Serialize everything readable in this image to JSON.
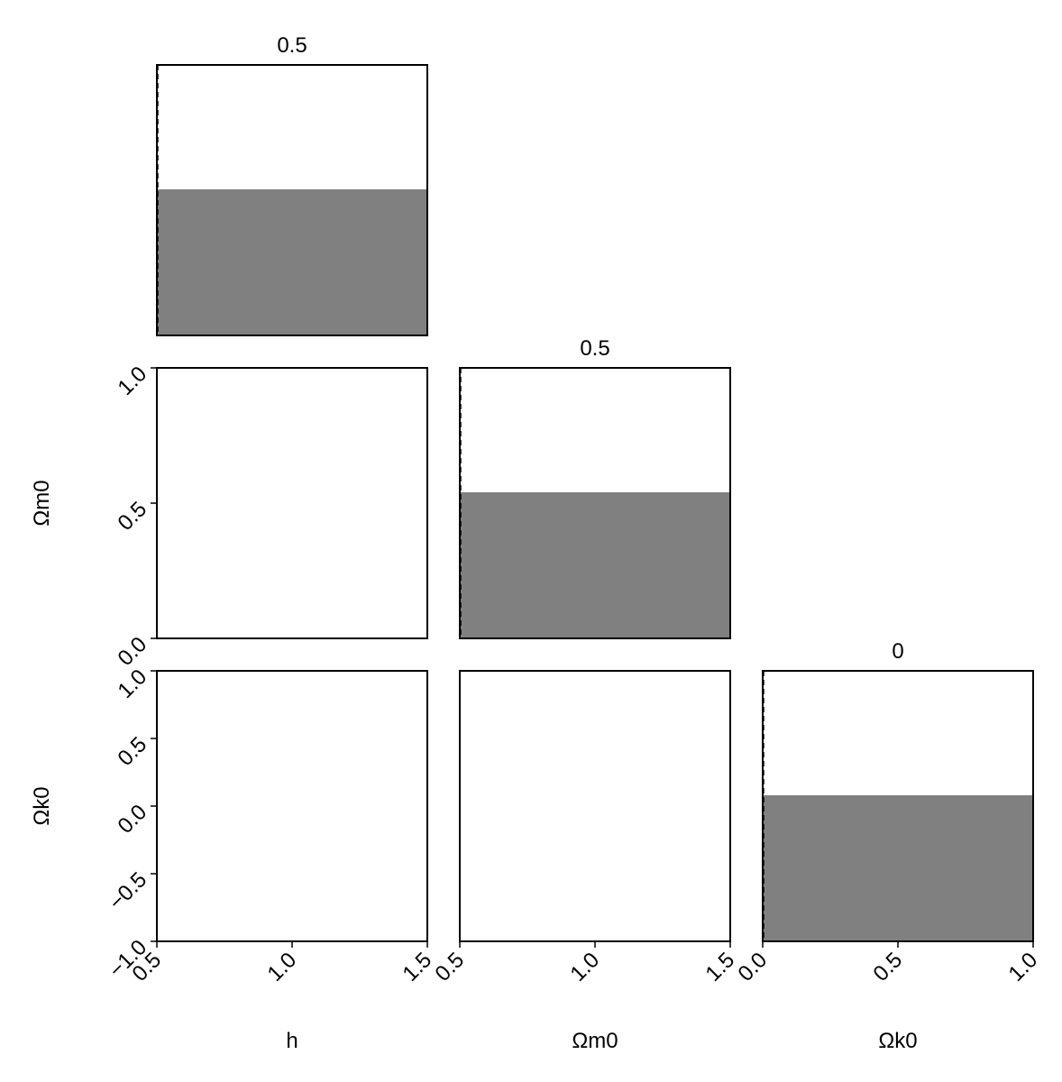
{
  "chart_data": {
    "type": "corner",
    "parameters": [
      "h",
      "Ωm0",
      "Ωk0"
    ],
    "xlabels": [
      "h",
      "Ωm0",
      "Ωk0"
    ],
    "ylabels": [
      "",
      "Ωm0",
      "Ωk0"
    ],
    "ranges": [
      [
        0.5,
        1.5
      ],
      [
        0.0,
        1.0
      ],
      [
        -1.0,
        1.0
      ]
    ],
    "xticks": [
      [
        "0.5",
        "1.0",
        "1.5"
      ],
      [
        "0.5",
        "1.0",
        "1.5"
      ],
      [
        "0.0",
        "0.5",
        "1.0"
      ]
    ],
    "yticks": [
      [],
      [
        "0.0",
        "0.5",
        "1.0"
      ],
      [
        "−1.0",
        "−0.5",
        "0.0",
        "0.5",
        "1.0"
      ]
    ],
    "diagonal_titles": [
      "0.5",
      "0.5",
      "0"
    ],
    "histograms": [
      {
        "parameter": "h",
        "bins": [
          0.5,
          1.5
        ],
        "fill_fraction": 0.54,
        "truth": 0.5
      },
      {
        "parameter": "Ωm0",
        "bins": [
          0.5,
          1.5
        ],
        "fill_fraction": 0.54,
        "truth": 0.5
      },
      {
        "parameter": "Ωk0",
        "bins": [
          0.0,
          1.0
        ],
        "fill_fraction": 0.54,
        "truth": 0.0
      }
    ],
    "colors": {
      "histogram": "#808080",
      "truth": "#000000",
      "frame": "#000000"
    },
    "grid": false,
    "legend": "none"
  }
}
